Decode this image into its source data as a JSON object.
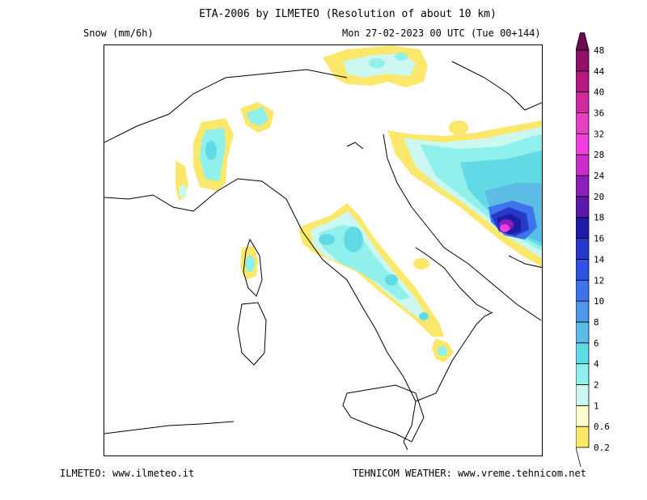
{
  "header": {
    "title": "ETA-2006 by ILMETEO (Resolution of about 10 km)",
    "variable": "Snow (mm/6h)",
    "datetime": "Mon 27-02-2023 00 UTC (Tue 00+144)"
  },
  "footer": {
    "left": "ILMETEO: www.ilmeteo.it",
    "right": "TEHNICOM WEATHER: www.vreme.tehnicom.net"
  },
  "legend": {
    "levels": [
      {
        "label": "0.2",
        "color": "#fbe86b"
      },
      {
        "label": "0.6",
        "color": "#fdfdd0"
      },
      {
        "label": "1",
        "color": "#cdf8f2"
      },
      {
        "label": "2",
        "color": "#8ff0ec"
      },
      {
        "label": "4",
        "color": "#61dae6"
      },
      {
        "label": "6",
        "color": "#5cbce4"
      },
      {
        "label": "8",
        "color": "#4f97ea"
      },
      {
        "label": "10",
        "color": "#3d73ec"
      },
      {
        "label": "12",
        "color": "#2f52e2"
      },
      {
        "label": "14",
        "color": "#2639c8"
      },
      {
        "label": "16",
        "color": "#1d1ca5"
      },
      {
        "label": "18",
        "color": "#5a18ad"
      },
      {
        "label": "20",
        "color": "#8b1db8"
      },
      {
        "label": "24",
        "color": "#cb2ec9"
      },
      {
        "label": "28",
        "color": "#f23fe0"
      },
      {
        "label": "32",
        "color": "#e63fc0"
      },
      {
        "label": "36",
        "color": "#cf2a9e"
      },
      {
        "label": "40",
        "color": "#b51883"
      },
      {
        "label": "44",
        "color": "#93106a"
      },
      {
        "label": "48",
        "color": "#6f0a4e"
      }
    ]
  }
}
